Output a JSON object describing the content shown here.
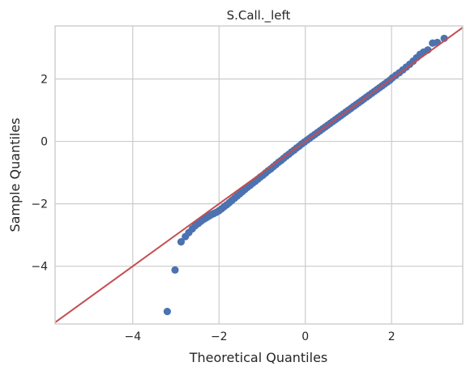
{
  "chart_data": {
    "type": "scatter",
    "title": "S.Call._left",
    "xlabel": "Theoretical Quantiles",
    "ylabel": "Sample Quantiles",
    "xlim": [
      -5.8,
      3.65
    ],
    "ylim": [
      -5.85,
      3.7
    ],
    "x_ticks": [
      -4,
      -2,
      0,
      2
    ],
    "y_ticks": [
      -4,
      -2,
      0,
      2
    ],
    "x_tick_labels": [
      "−4",
      "−2",
      "0",
      "2"
    ],
    "y_tick_labels": [
      "−4",
      "−2",
      "0",
      "2"
    ],
    "grid": true,
    "reference_line": {
      "slope": 1,
      "intercept": 0
    },
    "colors": {
      "points": "#4c72b0",
      "line": "#c44e52",
      "grid": "#cccccc",
      "axes": "#cccccc"
    },
    "points": [
      [
        -3.2,
        -5.45
      ],
      [
        -3.02,
        -4.12
      ],
      [
        -2.88,
        -3.22
      ],
      [
        -2.78,
        -3.05
      ],
      [
        -2.7,
        -2.92
      ],
      [
        -2.62,
        -2.8
      ],
      [
        -2.55,
        -2.7
      ],
      [
        -2.48,
        -2.63
      ],
      [
        -2.42,
        -2.56
      ],
      [
        -2.36,
        -2.5
      ],
      [
        -2.3,
        -2.45
      ],
      [
        -2.24,
        -2.4
      ],
      [
        -2.18,
        -2.35
      ],
      [
        -2.12,
        -2.31
      ],
      [
        -2.06,
        -2.27
      ],
      [
        -2.0,
        -2.22
      ],
      [
        -1.94,
        -2.16
      ],
      [
        -1.88,
        -2.09
      ],
      [
        -1.82,
        -2.03
      ],
      [
        -1.76,
        -1.96
      ],
      [
        -1.7,
        -1.89
      ],
      [
        -1.64,
        -1.82
      ],
      [
        -1.58,
        -1.75
      ],
      [
        -1.52,
        -1.68
      ],
      [
        -1.46,
        -1.61
      ],
      [
        -1.4,
        -1.54
      ],
      [
        -1.34,
        -1.47
      ],
      [
        -1.28,
        -1.41
      ],
      [
        -1.22,
        -1.34
      ],
      [
        -1.16,
        -1.28
      ],
      [
        -1.1,
        -1.21
      ],
      [
        -1.04,
        -1.14
      ],
      [
        -0.98,
        -1.08
      ],
      [
        -0.92,
        -1.01
      ],
      [
        -0.86,
        -0.94
      ],
      [
        -0.8,
        -0.88
      ],
      [
        -0.74,
        -0.81
      ],
      [
        -0.68,
        -0.74
      ],
      [
        -0.62,
        -0.67
      ],
      [
        -0.56,
        -0.61
      ],
      [
        -0.5,
        -0.54
      ],
      [
        -0.44,
        -0.47
      ],
      [
        -0.38,
        -0.41
      ],
      [
        -0.32,
        -0.34
      ],
      [
        -0.26,
        -0.28
      ],
      [
        -0.2,
        -0.21
      ],
      [
        -0.14,
        -0.15
      ],
      [
        -0.08,
        -0.08
      ],
      [
        -0.02,
        -0.02
      ],
      [
        0.04,
        0.04
      ],
      [
        0.1,
        0.1
      ],
      [
        0.16,
        0.16
      ],
      [
        0.22,
        0.22
      ],
      [
        0.28,
        0.28
      ],
      [
        0.34,
        0.34
      ],
      [
        0.4,
        0.4
      ],
      [
        0.46,
        0.46
      ],
      [
        0.52,
        0.52
      ],
      [
        0.58,
        0.58
      ],
      [
        0.64,
        0.64
      ],
      [
        0.7,
        0.7
      ],
      [
        0.76,
        0.76
      ],
      [
        0.82,
        0.82
      ],
      [
        0.88,
        0.88
      ],
      [
        0.94,
        0.94
      ],
      [
        1.0,
        1.0
      ],
      [
        1.06,
        1.06
      ],
      [
        1.12,
        1.12
      ],
      [
        1.18,
        1.18
      ],
      [
        1.24,
        1.24
      ],
      [
        1.3,
        1.3
      ],
      [
        1.36,
        1.36
      ],
      [
        1.42,
        1.42
      ],
      [
        1.48,
        1.48
      ],
      [
        1.54,
        1.54
      ],
      [
        1.6,
        1.6
      ],
      [
        1.66,
        1.66
      ],
      [
        1.72,
        1.72
      ],
      [
        1.78,
        1.78
      ],
      [
        1.84,
        1.84
      ],
      [
        1.9,
        1.9
      ],
      [
        1.96,
        1.96
      ],
      [
        2.02,
        2.04
      ],
      [
        2.1,
        2.12
      ],
      [
        2.18,
        2.2
      ],
      [
        2.26,
        2.29
      ],
      [
        2.34,
        2.38
      ],
      [
        2.42,
        2.47
      ],
      [
        2.5,
        2.57
      ],
      [
        2.58,
        2.68
      ],
      [
        2.66,
        2.79
      ],
      [
        2.74,
        2.86
      ],
      [
        2.84,
        2.93
      ],
      [
        2.95,
        3.15
      ],
      [
        3.06,
        3.17
      ],
      [
        3.22,
        3.3
      ]
    ]
  }
}
